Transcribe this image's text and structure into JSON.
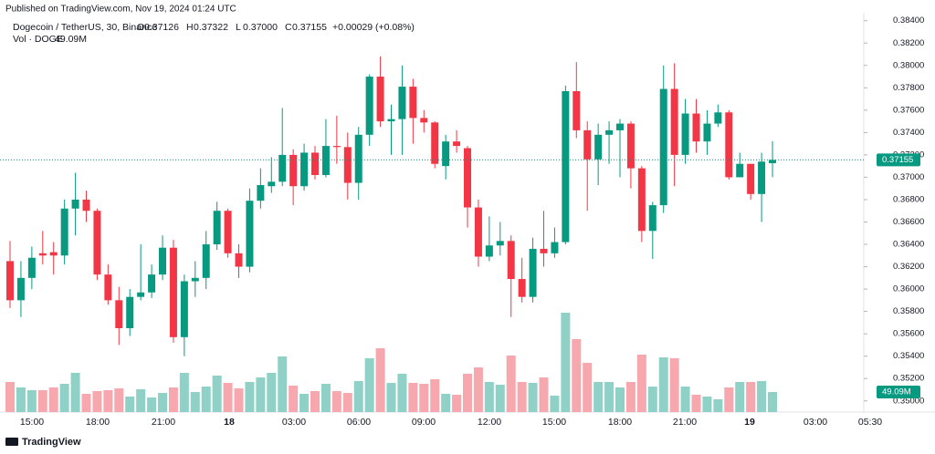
{
  "chart_data": {
    "type": "candlestick",
    "published": "Published on TradingView.com, Nov 19, 2024 01:24 UTC",
    "symbol": "Dogecoin / TetherUS, 30, Binance",
    "ohlc_legend": [
      {
        "label": "O",
        "value": 0.37126
      },
      {
        "label": "H",
        "value": 0.37322
      },
      {
        "label": "L",
        "value": 0.37,
        "value_label": "0.37000"
      },
      {
        "label": "C",
        "value": 0.37155
      }
    ],
    "change": "+0.00029 (+0.08%)",
    "volume_title": "Vol · DOGE",
    "up_color": "#089981",
    "down_color": "#f23645",
    "up_volume_color": "#8fd1c6",
    "down_volume_color": "#f6a8ae",
    "open": [
      0.3625,
      0.359,
      0.361,
      0.3632,
      0.3633,
      0.363,
      0.3672,
      0.368,
      0.367,
      0.3613,
      0.359,
      0.3565,
      0.3593,
      0.3597,
      0.3613,
      0.3637,
      0.3557,
      0.3607,
      0.361,
      0.364,
      0.367,
      0.3632,
      0.362,
      0.3679,
      0.3692,
      0.3696,
      0.372,
      0.3692,
      0.3722,
      0.3702,
      0.3728,
      0.3727,
      0.3695,
      0.3738,
      0.379,
      0.375,
      0.3752,
      0.3781,
      0.3753,
      0.3749,
      0.371,
      0.3732,
      0.3726,
      0.3673,
      0.3629,
      0.3639,
      0.3643,
      0.3609,
      0.3593,
      0.3636,
      0.3632,
      0.3642,
      0.3777,
      0.3742,
      0.3716,
      0.3738,
      0.3742,
      0.3748,
      0.3708,
      0.3652,
      0.3675,
      0.3779,
      0.372,
      0.3757,
      0.3732,
      0.3748,
      0.3758,
      0.37,
      0.3712,
      0.3685,
      0.37126
    ],
    "high": [
      0.3643,
      0.3625,
      0.3638,
      0.3652,
      0.3642,
      0.368,
      0.3704,
      0.3688,
      0.3672,
      0.3622,
      0.3602,
      0.36,
      0.364,
      0.3622,
      0.3648,
      0.3644,
      0.3613,
      0.3625,
      0.3652,
      0.3678,
      0.3672,
      0.364,
      0.369,
      0.3708,
      0.3718,
      0.3762,
      0.3725,
      0.373,
      0.3728,
      0.3752,
      0.3755,
      0.374,
      0.3745,
      0.3792,
      0.3808,
      0.3765,
      0.38,
      0.3788,
      0.376,
      0.375,
      0.3738,
      0.3742,
      0.3728,
      0.368,
      0.3665,
      0.366,
      0.3648,
      0.3628,
      0.3646,
      0.367,
      0.3655,
      0.3782,
      0.3803,
      0.375,
      0.3748,
      0.375,
      0.3752,
      0.375,
      0.371,
      0.3678,
      0.38,
      0.3802,
      0.377,
      0.377,
      0.376,
      0.3765,
      0.376,
      0.3722,
      0.3712,
      0.3722,
      0.37322
    ],
    "low": [
      0.3583,
      0.3575,
      0.36,
      0.3622,
      0.3613,
      0.3622,
      0.3648,
      0.366,
      0.3608,
      0.3586,
      0.355,
      0.3558,
      0.359,
      0.3592,
      0.3608,
      0.3552,
      0.354,
      0.3593,
      0.36,
      0.3635,
      0.3628,
      0.361,
      0.3615,
      0.3672,
      0.3686,
      0.3692,
      0.3675,
      0.3688,
      0.3698,
      0.37,
      0.3712,
      0.368,
      0.368,
      0.3728,
      0.3745,
      0.372,
      0.372,
      0.373,
      0.374,
      0.3708,
      0.3698,
      0.3722,
      0.3655,
      0.362,
      0.3625,
      0.363,
      0.3575,
      0.3588,
      0.3588,
      0.362,
      0.3628,
      0.364,
      0.3735,
      0.367,
      0.3693,
      0.3712,
      0.37,
      0.369,
      0.3642,
      0.3627,
      0.3668,
      0.3692,
      0.3712,
      0.3722,
      0.372,
      0.3745,
      0.3698,
      0.37,
      0.368,
      0.366,
      0.37
    ],
    "close": [
      0.359,
      0.361,
      0.3628,
      0.363,
      0.363,
      0.3672,
      0.368,
      0.367,
      0.3613,
      0.359,
      0.3565,
      0.3593,
      0.3597,
      0.3613,
      0.3637,
      0.3557,
      0.3607,
      0.361,
      0.364,
      0.367,
      0.3632,
      0.362,
      0.3679,
      0.3693,
      0.3696,
      0.372,
      0.3692,
      0.3722,
      0.3702,
      0.3728,
      0.3727,
      0.3695,
      0.3738,
      0.379,
      0.375,
      0.3752,
      0.3781,
      0.3753,
      0.3749,
      0.3712,
      0.3732,
      0.3728,
      0.3673,
      0.3629,
      0.3639,
      0.3643,
      0.3609,
      0.3593,
      0.3636,
      0.3632,
      0.3642,
      0.3777,
      0.3742,
      0.3716,
      0.3738,
      0.3742,
      0.3748,
      0.3708,
      0.3652,
      0.3675,
      0.3779,
      0.372,
      0.3757,
      0.3732,
      0.3748,
      0.3758,
      0.37,
      0.3712,
      0.3685,
      0.3714,
      0.37155
    ],
    "volume": [
      73.6,
      60.2,
      53.5,
      53.5,
      60.2,
      69.1,
      95.9,
      44.6,
      51.3,
      53.5,
      58,
      37.9,
      55.8,
      35.7,
      46.8,
      60.2,
      95.9,
      49.1,
      62.4,
      89.2,
      71.4,
      58,
      73.6,
      84.7,
      95.9,
      136,
      64.7,
      44.6,
      51.3,
      69.1,
      51.3,
      46.8,
      75.8,
      131.6,
      156.1,
      71.4,
      93.7,
      71.4,
      69.1,
      80.3,
      44.6,
      42.4,
      93.7,
      109.3,
      73.6,
      66.9,
      138.3,
      73.6,
      71.4,
      84.7,
      40.1,
      243.1,
      178.4,
      120.4,
      73.6,
      73.6,
      60.2,
      73.6,
      140.5,
      62.4,
      133.8,
      131.6,
      62.4,
      42.4,
      37.9,
      31.2,
      60.2,
      73.6,
      73.6,
      75.8,
      49.09
    ],
    "volume_value_labels": {
      "70": "49.09M"
    },
    "ylim": [
      0.349,
      0.3852
    ],
    "yticks": [
      {
        "value": 0.384,
        "label": "0.38400"
      },
      {
        "value": 0.382,
        "label": "0.38200"
      },
      {
        "value": 0.38,
        "label": "0.38000"
      },
      {
        "value": 0.378,
        "label": "0.37800"
      },
      {
        "value": 0.376,
        "label": "0.37600"
      },
      {
        "value": 0.374,
        "label": "0.37400"
      },
      {
        "value": 0.372,
        "label": "0.37200"
      },
      {
        "value": 0.37,
        "label": "0.37000"
      },
      {
        "value": 0.368,
        "label": "0.36800"
      },
      {
        "value": 0.366,
        "label": "0.36600"
      },
      {
        "value": 0.364,
        "label": "0.36400"
      },
      {
        "value": 0.362,
        "label": "0.36200"
      },
      {
        "value": 0.36,
        "label": "0.36000"
      },
      {
        "value": 0.358,
        "label": "0.35800"
      },
      {
        "value": 0.356,
        "label": "0.35600"
      },
      {
        "value": 0.354,
        "label": "0.35400"
      },
      {
        "value": 0.352,
        "label": "0.35200"
      },
      {
        "value": 0.35,
        "label": "0.35000"
      }
    ],
    "xticks": [
      "15:00",
      "18:00",
      "21:00",
      "18",
      "03:00",
      "06:00",
      "09:00",
      "12:00",
      "15:00",
      "18:00",
      "21:00",
      "19",
      "03:00",
      "05:30"
    ],
    "footer": "TradingView"
  }
}
